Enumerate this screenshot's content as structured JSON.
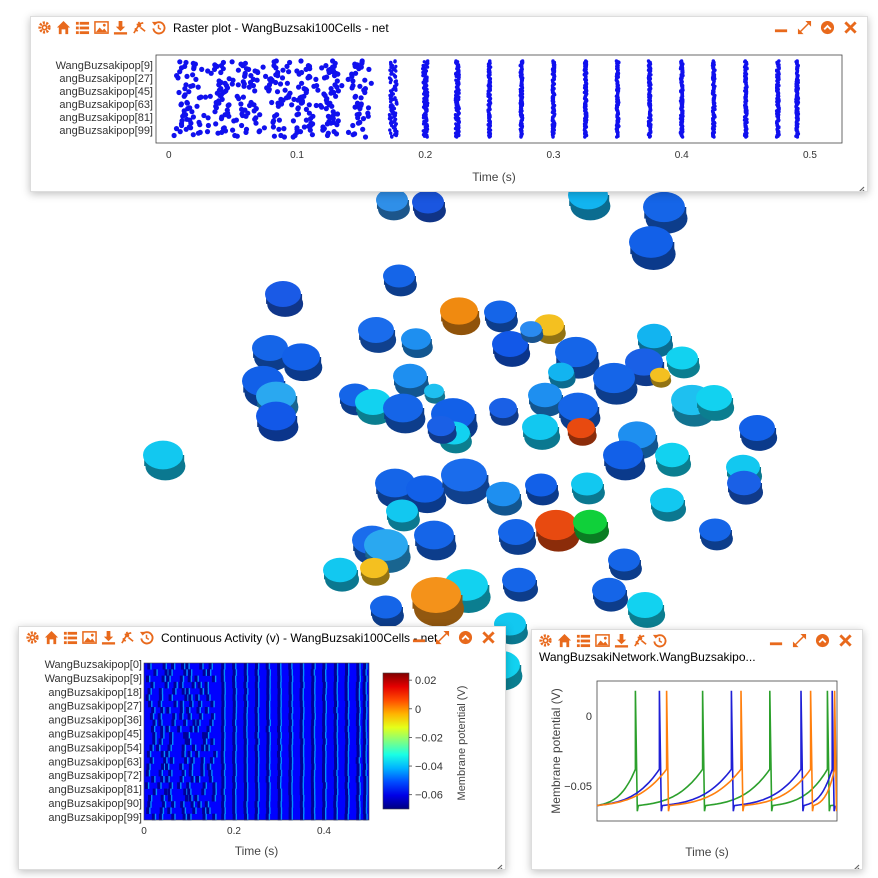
{
  "theme": {
    "accent": "#e8691c",
    "raster_blue": "#1010ee"
  },
  "toolbar_icons": [
    "gear-icon",
    "home-icon",
    "list-icon",
    "image-icon",
    "download-icon",
    "spark-icon",
    "history-icon"
  ],
  "window_controls": [
    "minimize-icon",
    "maximize-icon",
    "collapse-icon",
    "close-icon"
  ],
  "raster": {
    "title": "Raster plot - WangBuzsaki100Cells - net",
    "y_labels": [
      "WangBuzsakipop[9]",
      "angBuzsakipop[27]",
      "angBuzsakipop[45]",
      "angBuzsakipop[63]",
      "angBuzsakipop[81]",
      "angBuzsakipop[99]"
    ],
    "x_ticks": [
      "0",
      "0.1",
      "0.2",
      "0.3",
      "0.4",
      "0.5"
    ],
    "xlabel": "Time (s)"
  },
  "heatmap": {
    "title": "Continuous Activity (v) - WangBuzsaki100Cells - net",
    "y_labels": [
      "WangBuzsakipop[0]",
      "WangBuzsakipop[9]",
      "angBuzsakipop[18]",
      "angBuzsakipop[27]",
      "angBuzsakipop[36]",
      "angBuzsakipop[45]",
      "angBuzsakipop[54]",
      "angBuzsakipop[63]",
      "angBuzsakipop[72]",
      "angBuzsakipop[81]",
      "angBuzsakipop[90]",
      "angBuzsakipop[99]"
    ],
    "x_ticks": [
      "0",
      "0.2",
      "0.4"
    ],
    "xlabel": "Time (s)",
    "colorbar_ticks": [
      "0.02",
      "0",
      "−0.02",
      "−0.04",
      "−0.06"
    ],
    "colorbar_label": "Membrane potential (V)"
  },
  "trace": {
    "title": "WangBuzsakiNetwork.WangBuzsakipo...",
    "y_ticks": [
      "0",
      "−0.05"
    ],
    "ylabel": "Membrane potential (V)",
    "xlabel": "Time (s)",
    "colors": [
      "#2ca02c",
      "#1f1fd6",
      "#ff7f0e"
    ]
  },
  "chart_data": [
    {
      "type": "scatter",
      "name": "raster",
      "xlabel": "Time (s)",
      "xlim": [
        -0.01,
        0.525
      ],
      "y_tick_labels": [
        "WangBuzsakipop[9]",
        "angBuzsakipop[27]",
        "angBuzsakipop[45]",
        "angBuzsakipop[63]",
        "angBuzsakipop[81]",
        "angBuzsakipop[99]"
      ],
      "cells": 100,
      "burst_times": [
        0.015,
        0.04,
        0.06,
        0.085,
        0.105,
        0.125,
        0.148,
        0.175,
        0.2,
        0.225,
        0.25,
        0.275,
        0.3,
        0.325,
        0.35,
        0.375,
        0.4,
        0.425,
        0.45,
        0.475,
        0.49
      ],
      "burst_spread": [
        0.007,
        0.007,
        0.007,
        0.007,
        0.006,
        0.006,
        0.004,
        0.003,
        0.002,
        0.0015,
        0.001,
        0.001,
        0.001,
        0.001,
        0.001,
        0.001,
        0.001,
        0.001,
        0.001,
        0.001,
        0.001
      ]
    },
    {
      "type": "heatmap",
      "name": "continuous-activity",
      "xlabel": "Time (s)",
      "xlim": [
        0,
        0.5
      ],
      "rows": 100,
      "colorbar_range": [
        -0.07,
        0.025
      ],
      "colorbar_label": "Membrane potential (V)",
      "spike_times": [
        0.015,
        0.04,
        0.06,
        0.085,
        0.105,
        0.125,
        0.148,
        0.175,
        0.2,
        0.225,
        0.25,
        0.275,
        0.3,
        0.325,
        0.35,
        0.375,
        0.4,
        0.425,
        0.45,
        0.475,
        0.49
      ]
    },
    {
      "type": "line",
      "name": "membrane-traces",
      "ylabel": "Membrane potential (V)",
      "xlabel": "Time (s)",
      "ylim": [
        -0.075,
        0.025
      ],
      "xlim": [
        0,
        0.5
      ],
      "series": [
        {
          "spikes": [
            0.08,
            0.22,
            0.36,
            0.48
          ]
        },
        {
          "spikes": [
            0.13,
            0.28,
            0.425,
            0.49
          ]
        },
        {
          "spikes": [
            0.145,
            0.3,
            0.445,
            0.495
          ]
        }
      ]
    }
  ]
}
